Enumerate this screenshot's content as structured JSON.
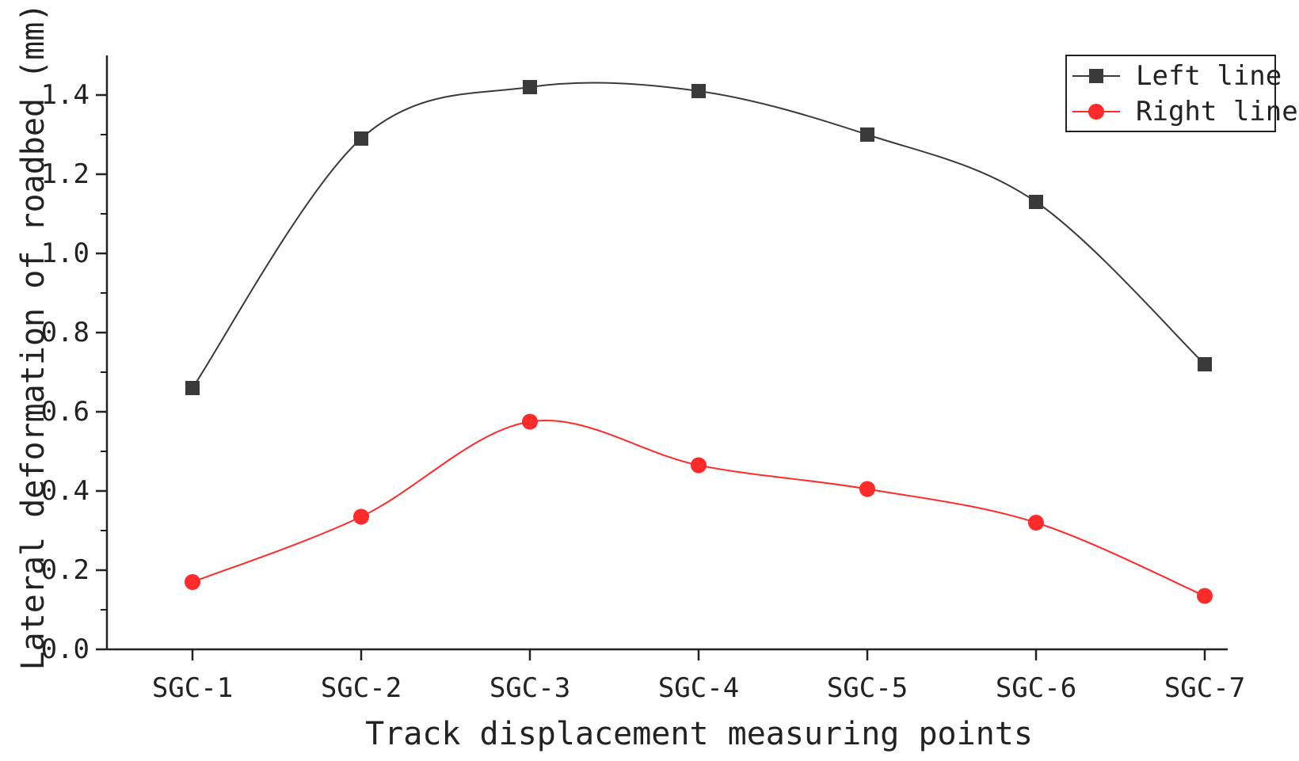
{
  "chart_data": {
    "type": "line",
    "xlabel": "Track displacement measuring points",
    "ylabel": "Lateral deformation of roadbed (mm)",
    "categories": [
      "SGC-1",
      "SGC-2",
      "SGC-3",
      "SGC-4",
      "SGC-5",
      "SGC-6",
      "SGC-7"
    ],
    "ylim": [
      0.0,
      1.5
    ],
    "yticks": [
      "0.0",
      "0.2",
      "0.4",
      "0.6",
      "0.8",
      "1.0",
      "1.2",
      "1.4"
    ],
    "grid": false,
    "legend_position": "top-right",
    "series": [
      {
        "name": "Left line",
        "values": [
          0.66,
          1.29,
          1.42,
          1.41,
          1.3,
          1.13,
          0.72
        ],
        "color": "#3a3a3a",
        "marker": "square"
      },
      {
        "name": "Right line",
        "values": [
          0.17,
          0.335,
          0.575,
          0.465,
          0.405,
          0.32,
          0.135
        ],
        "color": "#ff2a2a",
        "marker": "circle"
      }
    ]
  }
}
